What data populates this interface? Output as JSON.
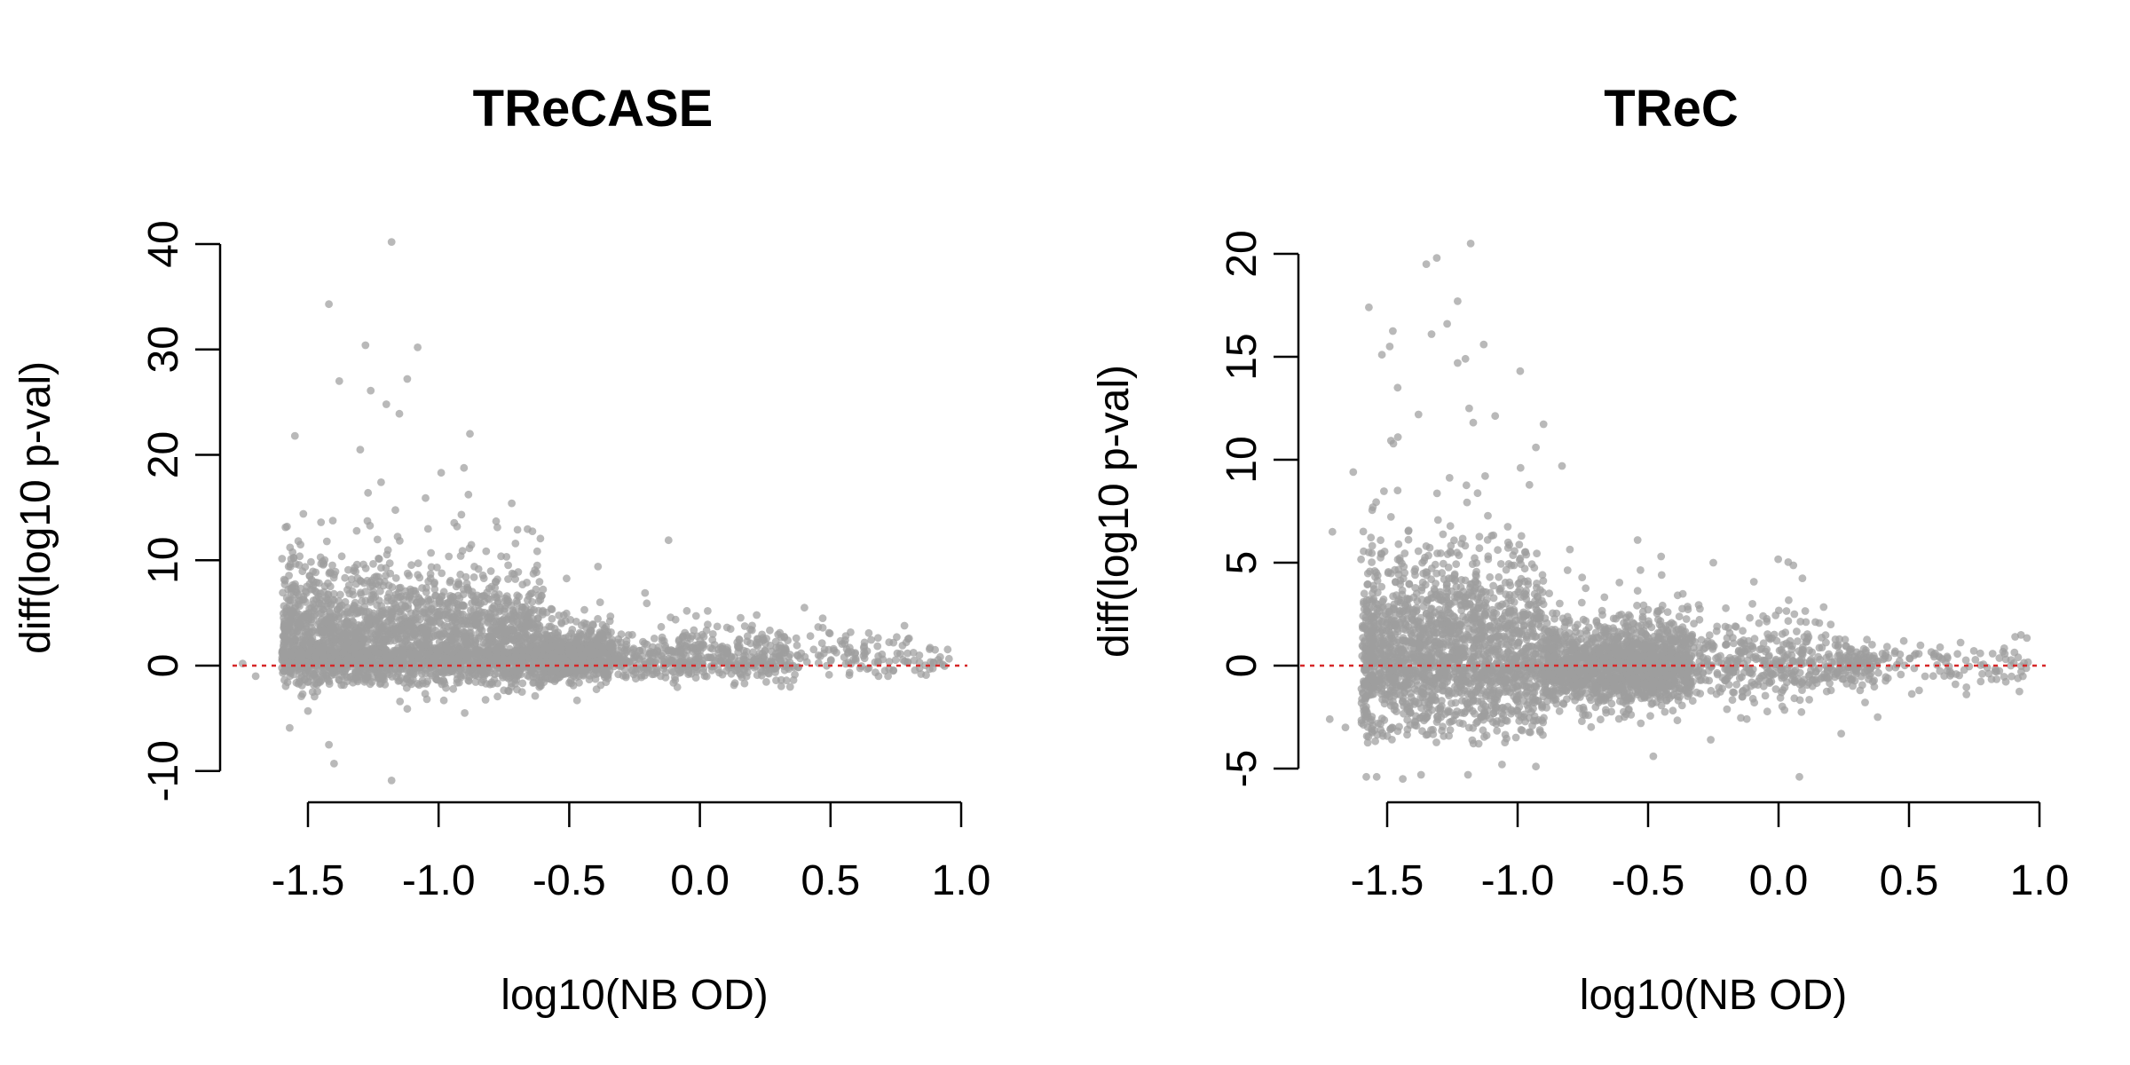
{
  "chart_data": [
    {
      "type": "scatter",
      "title": "TReCASE",
      "xlabel": "log10(NB OD)",
      "ylabel": "diff(log10 p-val)",
      "xlim": [
        -1.5,
        1.0
      ],
      "ylim": [
        -10,
        40
      ],
      "x_ticks": [
        "-1.5",
        "-1.0",
        "-0.5",
        "0.0",
        "0.5",
        "1.0"
      ],
      "y_ticks": [
        "-10",
        "0",
        "10",
        "20",
        "30",
        "40"
      ],
      "reference_line": {
        "y": 0,
        "style": "dotted",
        "color": "#d62728"
      },
      "point_color": "#9e9e9e",
      "grid": false,
      "legend": "none",
      "approx_point_count": 4000,
      "outliers": [
        {
          "x": -1.18,
          "y": 40.2
        },
        {
          "x": -1.42,
          "y": 34.3
        },
        {
          "x": -1.28,
          "y": 30.4
        },
        {
          "x": -1.08,
          "y": 30.2
        },
        {
          "x": -1.12,
          "y": 27.2
        },
        {
          "x": -1.38,
          "y": 27.0
        },
        {
          "x": -1.26,
          "y": 26.1
        },
        {
          "x": -1.2,
          "y": 24.8
        },
        {
          "x": -1.15,
          "y": 23.9
        },
        {
          "x": -1.55,
          "y": 21.8
        },
        {
          "x": -0.88,
          "y": 22.0
        },
        {
          "x": -1.3,
          "y": 20.5
        },
        {
          "x": -0.99,
          "y": 18.3
        },
        {
          "x": -1.22,
          "y": 17.4
        },
        {
          "x": -1.27,
          "y": 16.4
        },
        {
          "x": -0.72,
          "y": 15.4
        },
        {
          "x": -1.05,
          "y": 15.9
        },
        {
          "x": -0.78,
          "y": 13.7
        },
        {
          "x": -1.45,
          "y": 13.6
        },
        {
          "x": -1.58,
          "y": 13.2
        },
        {
          "x": -0.12,
          "y": 11.9
        },
        {
          "x": -0.39,
          "y": 9.4
        },
        {
          "x": 0.4,
          "y": 5.5
        },
        {
          "x": 0.47,
          "y": 4.5
        },
        {
          "x": -0.21,
          "y": 6.9
        },
        {
          "x": -0.05,
          "y": 5.2
        },
        {
          "x": -1.18,
          "y": -10.9
        },
        {
          "x": -1.4,
          "y": -9.3
        },
        {
          "x": -1.42,
          "y": -7.5
        },
        {
          "x": -1.57,
          "y": -5.9
        },
        {
          "x": -1.5,
          "y": -4.3
        },
        {
          "x": -0.9,
          "y": -4.5
        },
        {
          "x": -1.12,
          "y": -4.1
        },
        {
          "x": -0.47,
          "y": -3.3
        },
        {
          "x": -1.75,
          "y": 0.2
        },
        {
          "x": -1.7,
          "y": -1.0
        },
        {
          "x": 0.9,
          "y": 1.5
        },
        {
          "x": 0.93,
          "y": 0.1
        },
        {
          "x": 0.82,
          "y": 0.5
        },
        {
          "x": 0.72,
          "y": -1.0
        },
        {
          "x": 0.63,
          "y": 2.2
        },
        {
          "x": 0.58,
          "y": 1.3
        },
        {
          "x": 0.7,
          "y": 0.6
        },
        {
          "x": 0.31,
          "y": 0.3
        },
        {
          "x": 0.25,
          "y": 1.4
        },
        {
          "x": 0.2,
          "y": 3.8
        },
        {
          "x": 0.15,
          "y": 2.5
        },
        {
          "x": 0.05,
          "y": 3.0
        }
      ]
    },
    {
      "type": "scatter",
      "title": "TReC",
      "xlabel": "log10(NB OD)",
      "ylabel": "diff(log10 p-val)",
      "xlim": [
        -1.5,
        1.0
      ],
      "ylim": [
        -5,
        20
      ],
      "x_ticks": [
        "-1.5",
        "-1.0",
        "-0.5",
        "0.0",
        "0.5",
        "1.0"
      ],
      "y_ticks": [
        "-5",
        "0",
        "5",
        "10",
        "15",
        "20"
      ],
      "reference_line": {
        "y": 0,
        "style": "dotted",
        "color": "#d62728"
      },
      "point_color": "#9e9e9e",
      "grid": false,
      "legend": "none",
      "approx_point_count": 4000,
      "outliers": [
        {
          "x": -1.18,
          "y": 20.5
        },
        {
          "x": -1.31,
          "y": 19.8
        },
        {
          "x": -1.35,
          "y": 19.5
        },
        {
          "x": -1.23,
          "y": 17.7
        },
        {
          "x": -1.57,
          "y": 17.4
        },
        {
          "x": -1.27,
          "y": 16.6
        },
        {
          "x": -1.33,
          "y": 16.1
        },
        {
          "x": -1.13,
          "y": 15.6
        },
        {
          "x": -1.49,
          "y": 15.5
        },
        {
          "x": -1.52,
          "y": 15.1
        },
        {
          "x": -1.2,
          "y": 14.9
        },
        {
          "x": -1.23,
          "y": 14.7
        },
        {
          "x": -0.99,
          "y": 14.3
        },
        {
          "x": -1.46,
          "y": 13.5
        },
        {
          "x": -1.38,
          "y": 12.2
        },
        {
          "x": -1.17,
          "y": 11.8
        },
        {
          "x": -0.93,
          "y": 10.6
        },
        {
          "x": -0.83,
          "y": 9.7
        },
        {
          "x": -1.63,
          "y": 9.4
        },
        {
          "x": -0.54,
          "y": 6.1
        },
        {
          "x": -0.45,
          "y": 5.3
        },
        {
          "x": -0.25,
          "y": 5.0
        },
        {
          "x": -0.1,
          "y": 3.0
        },
        {
          "x": -1.71,
          "y": 6.5
        },
        {
          "x": 0.48,
          "y": 1.2
        },
        {
          "x": 0.6,
          "y": 0.6
        },
        {
          "x": 0.72,
          "y": -1.4
        },
        {
          "x": 0.8,
          "y": -0.1
        },
        {
          "x": 0.89,
          "y": 0.0
        },
        {
          "x": 0.93,
          "y": -0.3
        },
        {
          "x": 0.52,
          "y": 0.5
        },
        {
          "x": 0.38,
          "y": -2.5
        },
        {
          "x": 0.4,
          "y": 0.3
        },
        {
          "x": 0.24,
          "y": -3.3
        },
        {
          "x": 0.08,
          "y": -5.4
        },
        {
          "x": -1.72,
          "y": -2.6
        },
        {
          "x": -1.66,
          "y": -3.0
        },
        {
          "x": -1.58,
          "y": -5.4
        },
        {
          "x": -1.54,
          "y": -5.4
        },
        {
          "x": -1.44,
          "y": -5.5
        },
        {
          "x": -1.37,
          "y": -5.3
        },
        {
          "x": -1.19,
          "y": -5.3
        },
        {
          "x": -1.06,
          "y": -4.8
        },
        {
          "x": -0.93,
          "y": -4.9
        },
        {
          "x": -0.48,
          "y": -4.4
        },
        {
          "x": -0.26,
          "y": -3.6
        },
        {
          "x": 0.13,
          "y": -1.0
        },
        {
          "x": 0.2,
          "y": 2.0
        }
      ]
    }
  ]
}
